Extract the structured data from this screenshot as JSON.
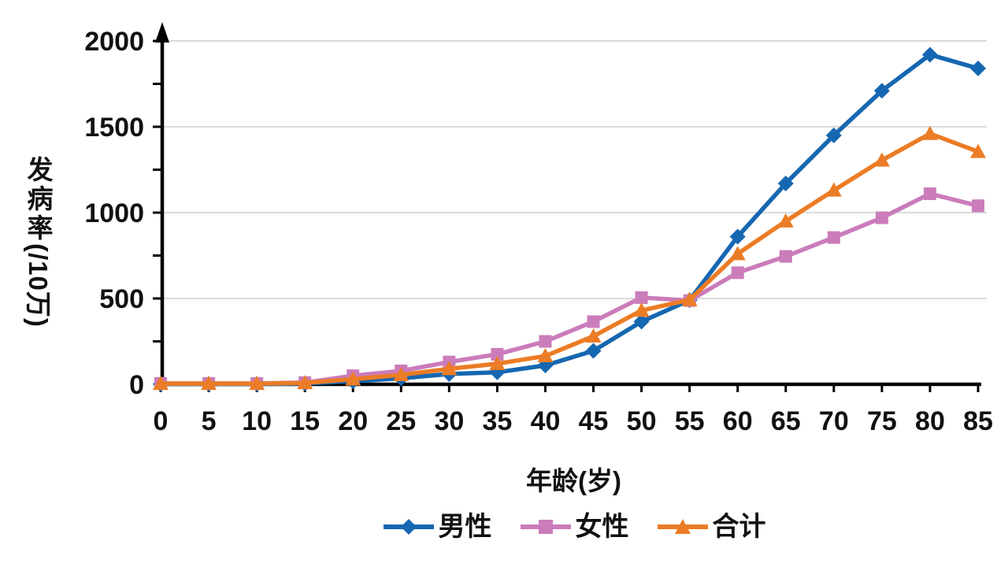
{
  "chart": {
    "y_axis_title_main": "发病率",
    "y_axis_title_unit": "(/10万)",
    "x_axis_title": "年龄(岁)",
    "y_tick_labels": [
      "0",
      "500",
      "1000",
      "1500",
      "2000"
    ],
    "y_tick_values": [
      0,
      500,
      1000,
      1500,
      2000
    ],
    "y_minor_tick_step": 250,
    "colors": {
      "axis": "#000000",
      "grid": "#cfcfcf",
      "text": "#111111"
    }
  },
  "chart_data": {
    "type": "line",
    "title": "",
    "xlabel": "年龄(岁)",
    "ylabel": "发病率(/10万)",
    "ylim": [
      0,
      2000
    ],
    "grid": true,
    "legend_position": "bottom",
    "x": [
      0,
      5,
      10,
      15,
      20,
      25,
      30,
      35,
      40,
      45,
      50,
      55,
      60,
      65,
      70,
      75,
      80,
      85
    ],
    "series": [
      {
        "key": "male",
        "name": "男性",
        "marker": "diamond",
        "color": "#1667b1",
        "values": [
          2,
          2,
          2,
          5,
          18,
          35,
          60,
          70,
          110,
          195,
          365,
          490,
          860,
          1170,
          1450,
          1710,
          1920,
          1840
        ]
      },
      {
        "key": "female",
        "name": "女性",
        "marker": "square",
        "color": "#cb7cba",
        "values": [
          5,
          5,
          5,
          10,
          50,
          78,
          130,
          175,
          250,
          365,
          505,
          488,
          650,
          745,
          855,
          970,
          1110,
          1040
        ]
      },
      {
        "key": "total",
        "name": "合计",
        "marker": "triangle",
        "color": "#ec7c25",
        "values": [
          4,
          4,
          4,
          8,
          30,
          55,
          90,
          120,
          165,
          280,
          430,
          492,
          760,
          950,
          1130,
          1305,
          1460,
          1355
        ]
      }
    ]
  }
}
